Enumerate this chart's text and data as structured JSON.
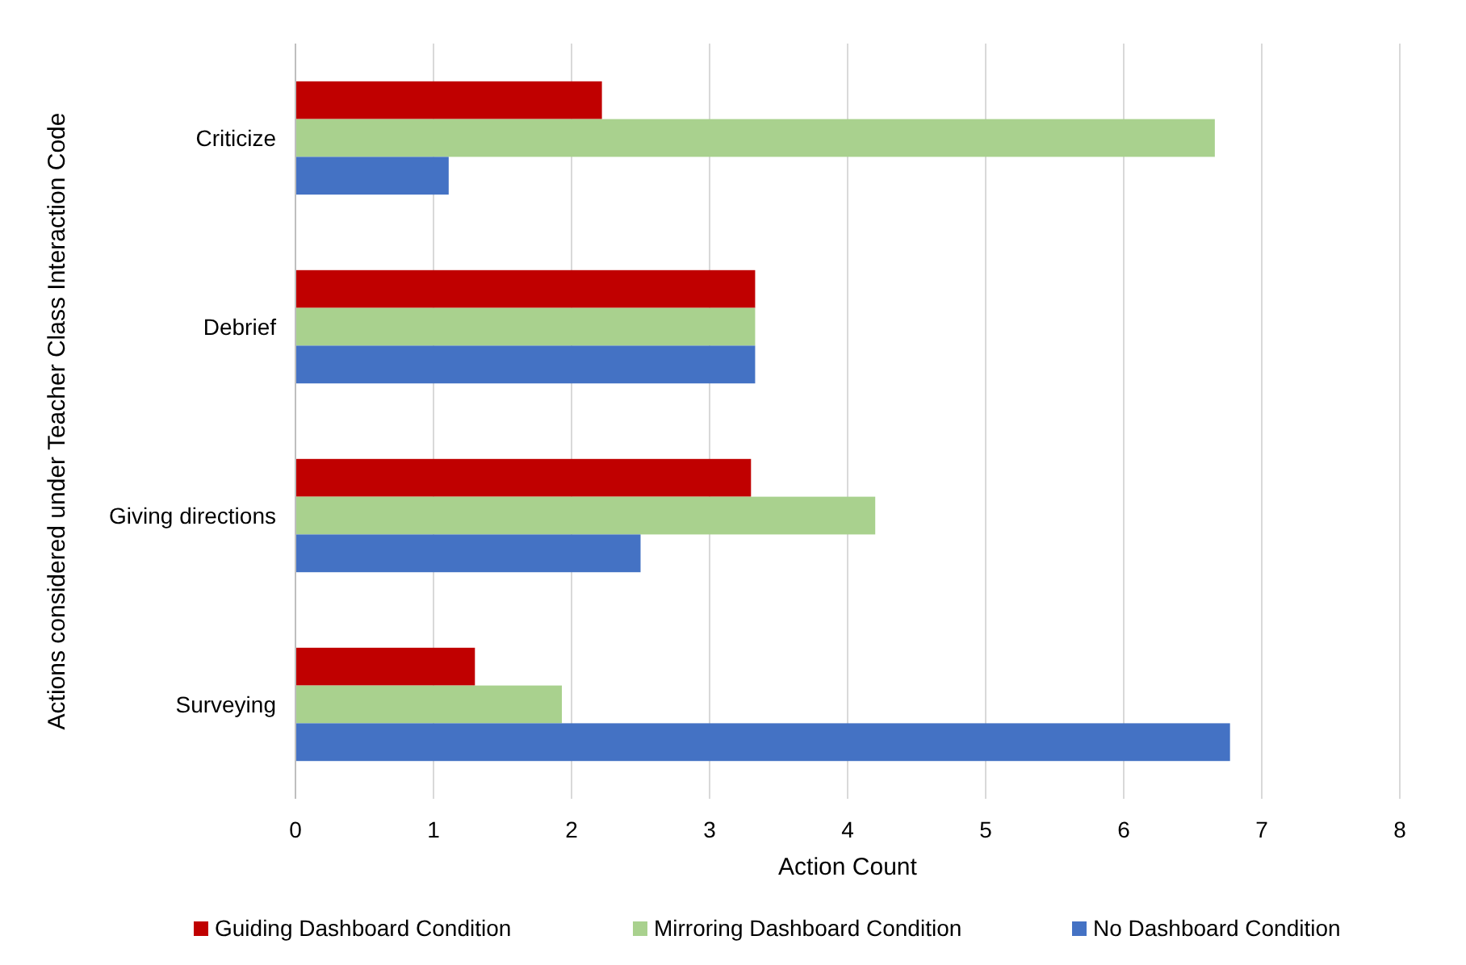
{
  "chart_data": {
    "type": "bar",
    "orientation": "horizontal",
    "xlabel": "Action Count",
    "ylabel": "Actions considered under Teacher Class Interaction Code",
    "categories": [
      "Criticize",
      "Debrief",
      "Giving directions",
      "Surveying"
    ],
    "series": [
      {
        "name": "Guiding Dashboard Condition",
        "color": "#c00000",
        "values": [
          2.22,
          3.33,
          3.3,
          1.3
        ]
      },
      {
        "name": "Mirroring Dashboard Condition",
        "color": "#a9d18e",
        "values": [
          6.66,
          3.33,
          4.2,
          1.93
        ]
      },
      {
        "name": "No Dashboard Condition",
        "color": "#4472c4",
        "values": [
          1.11,
          3.33,
          2.5,
          6.77
        ]
      }
    ],
    "xlim": [
      0,
      8
    ],
    "xticks": [
      0,
      1,
      2,
      3,
      4,
      5,
      6,
      7,
      8
    ],
    "grid": "x",
    "legend": "bottom"
  }
}
